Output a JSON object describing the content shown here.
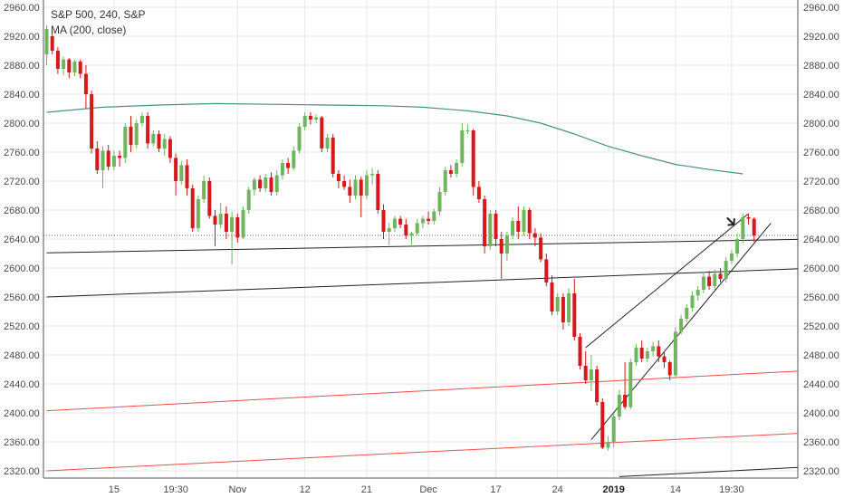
{
  "legend": {
    "symbol_line": "S&P 500, 240, S&P",
    "indicator_line": "MA (200, close)"
  },
  "chart_data": {
    "type": "candlestick",
    "symbol": "S&P 500",
    "timeframe": "240",
    "source": "S&P",
    "ylim": [
      2310,
      2970
    ],
    "y_ticks": [
      2960,
      2920,
      2880,
      2840,
      2800,
      2760,
      2720,
      2680,
      2640,
      2600,
      2560,
      2520,
      2480,
      2440,
      2400,
      2360,
      2320
    ],
    "y_tick_format": "0.00",
    "bar_count": 128,
    "x_ticks": [
      {
        "bar": 12,
        "label": "15",
        "bold": false
      },
      {
        "bar": 23,
        "label": "19:30",
        "bold": false
      },
      {
        "bar": 34,
        "label": "Nov",
        "bold": false
      },
      {
        "bar": 46,
        "label": "12",
        "bold": false
      },
      {
        "bar": 57,
        "label": "21",
        "bold": false
      },
      {
        "bar": 68,
        "label": "Dec",
        "bold": false
      },
      {
        "bar": 80,
        "label": "17",
        "bold": false
      },
      {
        "bar": 91,
        "label": "24",
        "bold": false
      },
      {
        "bar": 101,
        "label": "2019",
        "bold": true
      },
      {
        "bar": 112,
        "label": "14",
        "bold": false
      },
      {
        "bar": 122,
        "label": "19:30",
        "bold": false
      }
    ],
    "colors": {
      "up": "#6fb55f",
      "down": "#d6171c",
      "ma": "#4a908a",
      "grid": "#e6e6e6",
      "trendline_black": "#222222",
      "trendline_red": "#ef4d4d",
      "last_price_line": "#555555"
    },
    "candles": [
      {
        "o": 2895,
        "h": 2935,
        "l": 2880,
        "c": 2930
      },
      {
        "o": 2920,
        "h": 2928,
        "l": 2895,
        "c": 2900
      },
      {
        "o": 2900,
        "h": 2905,
        "l": 2868,
        "c": 2875
      },
      {
        "o": 2875,
        "h": 2892,
        "l": 2866,
        "c": 2888
      },
      {
        "o": 2888,
        "h": 2890,
        "l": 2862,
        "c": 2870
      },
      {
        "o": 2870,
        "h": 2888,
        "l": 2865,
        "c": 2885
      },
      {
        "o": 2885,
        "h": 2888,
        "l": 2862,
        "c": 2868
      },
      {
        "o": 2868,
        "h": 2880,
        "l": 2820,
        "c": 2840
      },
      {
        "o": 2840,
        "h": 2845,
        "l": 2758,
        "c": 2765
      },
      {
        "o": 2765,
        "h": 2775,
        "l": 2730,
        "c": 2735
      },
      {
        "o": 2735,
        "h": 2768,
        "l": 2710,
        "c": 2762
      },
      {
        "o": 2762,
        "h": 2770,
        "l": 2735,
        "c": 2740
      },
      {
        "o": 2740,
        "h": 2762,
        "l": 2735,
        "c": 2755
      },
      {
        "o": 2755,
        "h": 2762,
        "l": 2740,
        "c": 2752
      },
      {
        "o": 2752,
        "h": 2800,
        "l": 2745,
        "c": 2795
      },
      {
        "o": 2795,
        "h": 2810,
        "l": 2760,
        "c": 2770
      },
      {
        "o": 2770,
        "h": 2805,
        "l": 2765,
        "c": 2800
      },
      {
        "o": 2800,
        "h": 2815,
        "l": 2795,
        "c": 2810
      },
      {
        "o": 2810,
        "h": 2815,
        "l": 2765,
        "c": 2772
      },
      {
        "o": 2772,
        "h": 2790,
        "l": 2768,
        "c": 2785
      },
      {
        "o": 2785,
        "h": 2790,
        "l": 2760,
        "c": 2765
      },
      {
        "o": 2765,
        "h": 2785,
        "l": 2755,
        "c": 2778
      },
      {
        "o": 2778,
        "h": 2782,
        "l": 2745,
        "c": 2752
      },
      {
        "o": 2752,
        "h": 2758,
        "l": 2700,
        "c": 2720
      },
      {
        "o": 2720,
        "h": 2748,
        "l": 2715,
        "c": 2742
      },
      {
        "o": 2742,
        "h": 2750,
        "l": 2700,
        "c": 2710
      },
      {
        "o": 2710,
        "h": 2715,
        "l": 2650,
        "c": 2655
      },
      {
        "o": 2655,
        "h": 2700,
        "l": 2650,
        "c": 2695
      },
      {
        "o": 2695,
        "h": 2728,
        "l": 2690,
        "c": 2720
      },
      {
        "o": 2720,
        "h": 2725,
        "l": 2668,
        "c": 2672
      },
      {
        "o": 2672,
        "h": 2680,
        "l": 2630,
        "c": 2660
      },
      {
        "o": 2660,
        "h": 2690,
        "l": 2655,
        "c": 2675
      },
      {
        "o": 2675,
        "h": 2685,
        "l": 2640,
        "c": 2650
      },
      {
        "o": 2650,
        "h": 2678,
        "l": 2605,
        "c": 2670
      },
      {
        "o": 2670,
        "h": 2675,
        "l": 2635,
        "c": 2642
      },
      {
        "o": 2642,
        "h": 2685,
        "l": 2640,
        "c": 2680
      },
      {
        "o": 2680,
        "h": 2712,
        "l": 2675,
        "c": 2708
      },
      {
        "o": 2708,
        "h": 2725,
        "l": 2700,
        "c": 2722
      },
      {
        "o": 2722,
        "h": 2728,
        "l": 2705,
        "c": 2710
      },
      {
        "o": 2710,
        "h": 2730,
        "l": 2705,
        "c": 2725
      },
      {
        "o": 2725,
        "h": 2732,
        "l": 2700,
        "c": 2705
      },
      {
        "o": 2705,
        "h": 2735,
        "l": 2700,
        "c": 2728
      },
      {
        "o": 2728,
        "h": 2750,
        "l": 2722,
        "c": 2745
      },
      {
        "o": 2745,
        "h": 2752,
        "l": 2730,
        "c": 2738
      },
      {
        "o": 2738,
        "h": 2768,
        "l": 2735,
        "c": 2762
      },
      {
        "o": 2762,
        "h": 2800,
        "l": 2758,
        "c": 2795
      },
      {
        "o": 2795,
        "h": 2815,
        "l": 2790,
        "c": 2810
      },
      {
        "o": 2810,
        "h": 2815,
        "l": 2798,
        "c": 2805
      },
      {
        "o": 2805,
        "h": 2812,
        "l": 2800,
        "c": 2808
      },
      {
        "o": 2808,
        "h": 2810,
        "l": 2760,
        "c": 2765
      },
      {
        "o": 2765,
        "h": 2785,
        "l": 2760,
        "c": 2780
      },
      {
        "o": 2780,
        "h": 2785,
        "l": 2725,
        "c": 2730
      },
      {
        "o": 2730,
        "h": 2735,
        "l": 2710,
        "c": 2720
      },
      {
        "o": 2720,
        "h": 2728,
        "l": 2708,
        "c": 2712
      },
      {
        "o": 2712,
        "h": 2722,
        "l": 2690,
        "c": 2700
      },
      {
        "o": 2700,
        "h": 2728,
        "l": 2695,
        "c": 2722
      },
      {
        "o": 2722,
        "h": 2726,
        "l": 2670,
        "c": 2700
      },
      {
        "o": 2700,
        "h": 2735,
        "l": 2695,
        "c": 2728
      },
      {
        "o": 2728,
        "h": 2738,
        "l": 2715,
        "c": 2730
      },
      {
        "o": 2730,
        "h": 2735,
        "l": 2675,
        "c": 2680
      },
      {
        "o": 2680,
        "h": 2688,
        "l": 2640,
        "c": 2650
      },
      {
        "o": 2650,
        "h": 2662,
        "l": 2632,
        "c": 2655
      },
      {
        "o": 2655,
        "h": 2672,
        "l": 2650,
        "c": 2668
      },
      {
        "o": 2668,
        "h": 2672,
        "l": 2655,
        "c": 2660
      },
      {
        "o": 2660,
        "h": 2668,
        "l": 2640,
        "c": 2645
      },
      {
        "o": 2645,
        "h": 2650,
        "l": 2632,
        "c": 2648
      },
      {
        "o": 2648,
        "h": 2668,
        "l": 2645,
        "c": 2662
      },
      {
        "o": 2662,
        "h": 2672,
        "l": 2655,
        "c": 2668
      },
      {
        "o": 2668,
        "h": 2678,
        "l": 2660,
        "c": 2665
      },
      {
        "o": 2665,
        "h": 2682,
        "l": 2660,
        "c": 2678
      },
      {
        "o": 2678,
        "h": 2712,
        "l": 2672,
        "c": 2705
      },
      {
        "o": 2705,
        "h": 2740,
        "l": 2700,
        "c": 2735
      },
      {
        "o": 2735,
        "h": 2742,
        "l": 2725,
        "c": 2730
      },
      {
        "o": 2730,
        "h": 2750,
        "l": 2725,
        "c": 2745
      },
      {
        "o": 2745,
        "h": 2800,
        "l": 2740,
        "c": 2790
      },
      {
        "o": 2790,
        "h": 2798,
        "l": 2785,
        "c": 2790
      },
      {
        "o": 2790,
        "h": 2792,
        "l": 2700,
        "c": 2712
      },
      {
        "o": 2712,
        "h": 2720,
        "l": 2690,
        "c": 2695
      },
      {
        "o": 2695,
        "h": 2700,
        "l": 2620,
        "c": 2630
      },
      {
        "o": 2630,
        "h": 2680,
        "l": 2625,
        "c": 2675
      },
      {
        "o": 2675,
        "h": 2680,
        "l": 2630,
        "c": 2640
      },
      {
        "o": 2640,
        "h": 2650,
        "l": 2585,
        "c": 2620
      },
      {
        "o": 2620,
        "h": 2650,
        "l": 2610,
        "c": 2645
      },
      {
        "o": 2645,
        "h": 2670,
        "l": 2640,
        "c": 2665
      },
      {
        "o": 2665,
        "h": 2685,
        "l": 2640,
        "c": 2650
      },
      {
        "o": 2650,
        "h": 2685,
        "l": 2645,
        "c": 2680
      },
      {
        "o": 2680,
        "h": 2683,
        "l": 2640,
        "c": 2648
      },
      {
        "o": 2648,
        "h": 2655,
        "l": 2630,
        "c": 2642
      },
      {
        "o": 2642,
        "h": 2648,
        "l": 2608,
        "c": 2612
      },
      {
        "o": 2612,
        "h": 2620,
        "l": 2575,
        "c": 2580
      },
      {
        "o": 2580,
        "h": 2590,
        "l": 2535,
        "c": 2540
      },
      {
        "o": 2540,
        "h": 2565,
        "l": 2535,
        "c": 2560
      },
      {
        "o": 2560,
        "h": 2565,
        "l": 2515,
        "c": 2525
      },
      {
        "o": 2525,
        "h": 2572,
        "l": 2520,
        "c": 2565
      },
      {
        "o": 2565,
        "h": 2585,
        "l": 2500,
        "c": 2505
      },
      {
        "o": 2505,
        "h": 2510,
        "l": 2460,
        "c": 2465
      },
      {
        "o": 2465,
        "h": 2485,
        "l": 2440,
        "c": 2445
      },
      {
        "o": 2445,
        "h": 2480,
        "l": 2430,
        "c": 2460
      },
      {
        "o": 2460,
        "h": 2465,
        "l": 2410,
        "c": 2415
      },
      {
        "o": 2415,
        "h": 2420,
        "l": 2350,
        "c": 2352
      },
      {
        "o": 2352,
        "h": 2368,
        "l": 2348,
        "c": 2360
      },
      {
        "o": 2360,
        "h": 2400,
        "l": 2352,
        "c": 2395
      },
      {
        "o": 2395,
        "h": 2432,
        "l": 2390,
        "c": 2425
      },
      {
        "o": 2425,
        "h": 2470,
        "l": 2405,
        "c": 2408
      },
      {
        "o": 2408,
        "h": 2475,
        "l": 2405,
        "c": 2470
      },
      {
        "o": 2470,
        "h": 2495,
        "l": 2465,
        "c": 2490
      },
      {
        "o": 2490,
        "h": 2500,
        "l": 2470,
        "c": 2475
      },
      {
        "o": 2475,
        "h": 2490,
        "l": 2470,
        "c": 2485
      },
      {
        "o": 2485,
        "h": 2498,
        "l": 2478,
        "c": 2492
      },
      {
        "o": 2492,
        "h": 2500,
        "l": 2470,
        "c": 2478
      },
      {
        "o": 2478,
        "h": 2485,
        "l": 2462,
        "c": 2470
      },
      {
        "o": 2470,
        "h": 2472,
        "l": 2445,
        "c": 2452
      },
      {
        "o": 2452,
        "h": 2518,
        "l": 2450,
        "c": 2512
      },
      {
        "o": 2512,
        "h": 2535,
        "l": 2508,
        "c": 2530
      },
      {
        "o": 2530,
        "h": 2550,
        "l": 2525,
        "c": 2545
      },
      {
        "o": 2545,
        "h": 2568,
        "l": 2540,
        "c": 2562
      },
      {
        "o": 2562,
        "h": 2575,
        "l": 2555,
        "c": 2570
      },
      {
        "o": 2570,
        "h": 2595,
        "l": 2565,
        "c": 2588
      },
      {
        "o": 2588,
        "h": 2596,
        "l": 2570,
        "c": 2575
      },
      {
        "o": 2575,
        "h": 2598,
        "l": 2570,
        "c": 2592
      },
      {
        "o": 2592,
        "h": 2600,
        "l": 2580,
        "c": 2585
      },
      {
        "o": 2585,
        "h": 2615,
        "l": 2580,
        "c": 2610
      },
      {
        "o": 2610,
        "h": 2625,
        "l": 2605,
        "c": 2620
      },
      {
        "o": 2620,
        "h": 2648,
        "l": 2615,
        "c": 2640
      },
      {
        "o": 2640,
        "h": 2675,
        "l": 2635,
        "c": 2670
      },
      {
        "o": 2670,
        "h": 2675,
        "l": 2660,
        "c": 2668
      },
      {
        "o": 2668,
        "h": 2670,
        "l": 2636,
        "c": 2645
      }
    ],
    "ma_200": [
      {
        "bar": 0,
        "v": 2815
      },
      {
        "bar": 10,
        "v": 2822
      },
      {
        "bar": 20,
        "v": 2825
      },
      {
        "bar": 30,
        "v": 2827
      },
      {
        "bar": 40,
        "v": 2826
      },
      {
        "bar": 50,
        "v": 2825
      },
      {
        "bar": 60,
        "v": 2824
      },
      {
        "bar": 67,
        "v": 2822
      },
      {
        "bar": 75,
        "v": 2817
      },
      {
        "bar": 82,
        "v": 2810
      },
      {
        "bar": 88,
        "v": 2800
      },
      {
        "bar": 94,
        "v": 2785
      },
      {
        "bar": 100,
        "v": 2768
      },
      {
        "bar": 106,
        "v": 2755
      },
      {
        "bar": 112,
        "v": 2743
      },
      {
        "bar": 118,
        "v": 2736
      },
      {
        "bar": 124,
        "v": 2730
      }
    ],
    "trendlines": [
      {
        "color": "black",
        "points": [
          {
            "bar": 0,
            "v": 2621
          },
          {
            "bar": 137,
            "v": 2640
          }
        ]
      },
      {
        "color": "black",
        "points": [
          {
            "bar": 0,
            "v": 2560
          },
          {
            "bar": 134,
            "v": 2599
          }
        ]
      },
      {
        "color": "black",
        "points": [
          {
            "bar": 97,
            "v": 2363
          },
          {
            "bar": 129,
            "v": 2662
          }
        ]
      },
      {
        "color": "black",
        "points": [
          {
            "bar": 96,
            "v": 2490
          },
          {
            "bar": 125,
            "v": 2675
          }
        ]
      },
      {
        "color": "black",
        "points": [
          {
            "bar": 102,
            "v": 2312
          },
          {
            "bar": 137,
            "v": 2326
          }
        ]
      },
      {
        "color": "red",
        "points": [
          {
            "bar": 0,
            "v": 2403
          },
          {
            "bar": 137,
            "v": 2459
          }
        ]
      },
      {
        "color": "red",
        "points": [
          {
            "bar": 0,
            "v": 2320
          },
          {
            "bar": 137,
            "v": 2373
          }
        ]
      }
    ],
    "last_price": 2645,
    "annotation_arrow": {
      "bar": 122.4,
      "v": 2660,
      "direction": "down-right"
    }
  }
}
